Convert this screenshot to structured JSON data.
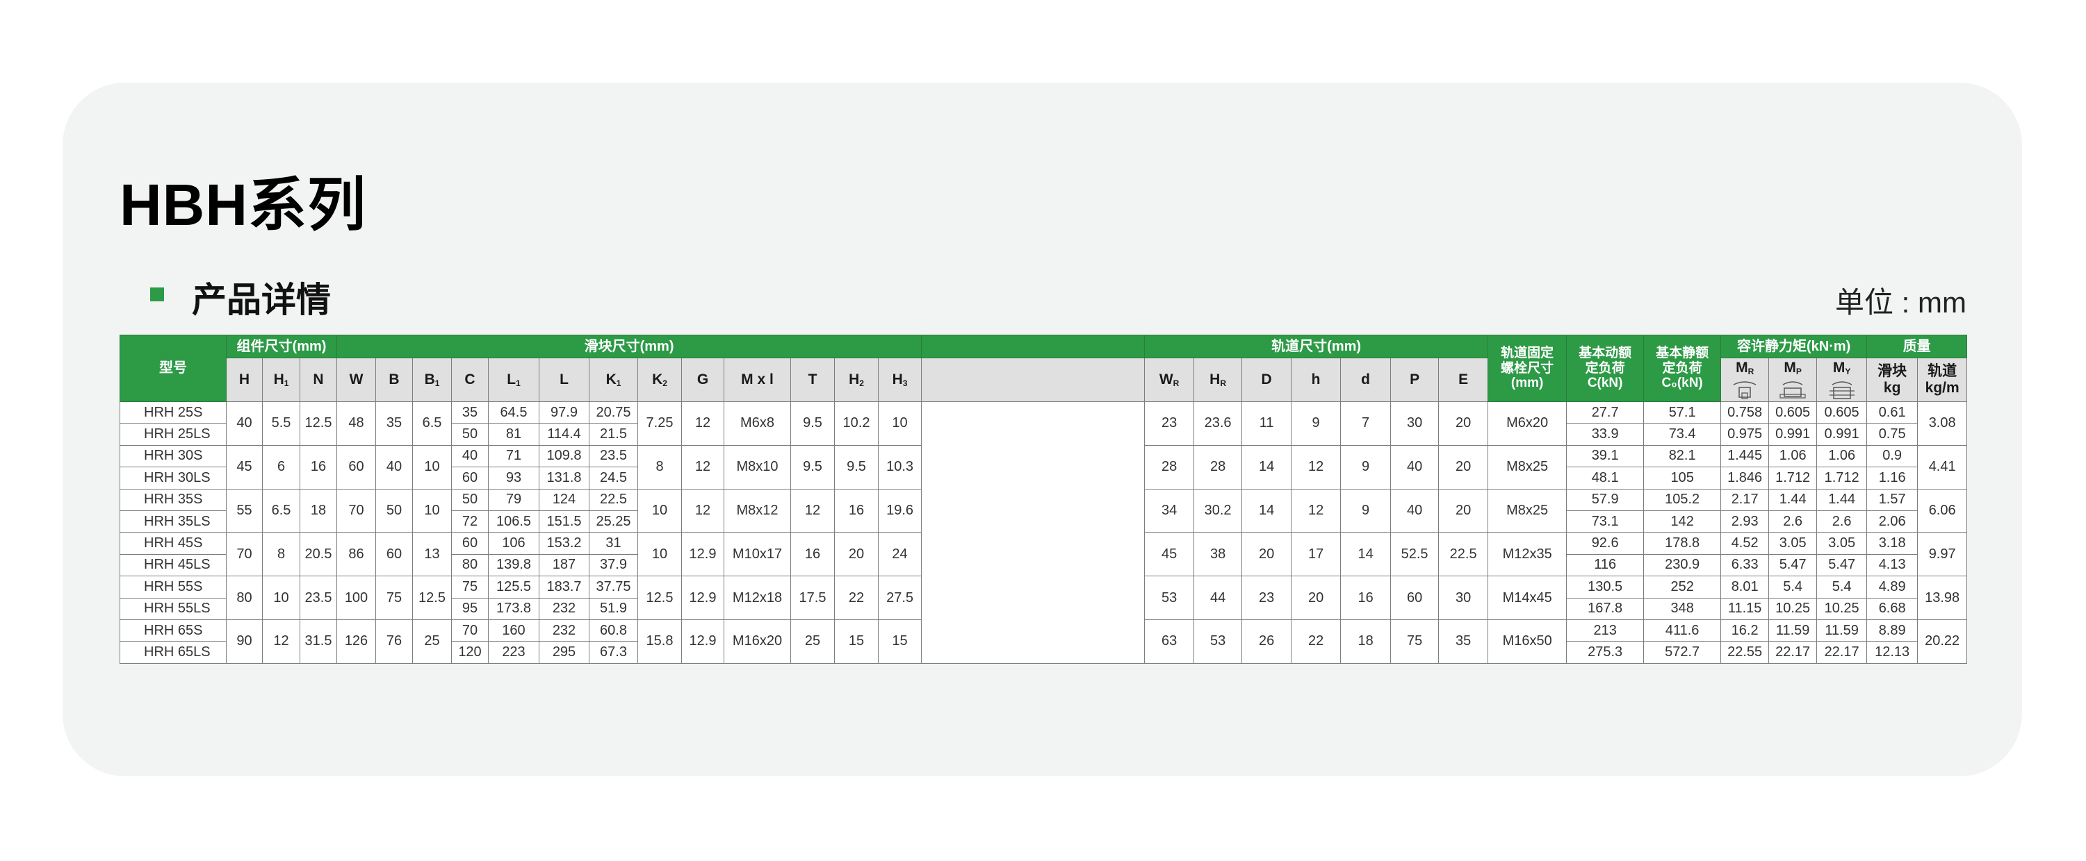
{
  "title": "HBH系列",
  "subtitle": "产品详情",
  "unit": "单位 : mm",
  "colors": {
    "accent": "#2d9a46",
    "header_gray": "#e0e0e0",
    "card": "#f2f4f3"
  },
  "header": {
    "model": "型号",
    "group_assembly": "组件尺寸(mm)",
    "group_block": "滑块尺寸(mm)",
    "group_rail": "轨道尺寸(mm)",
    "bolt": [
      "轨道固定",
      "螺栓尺寸",
      "(mm)"
    ],
    "dynamic": [
      "基本动额",
      "定负荷",
      "C(kN)"
    ],
    "static": [
      "基本静额",
      "定负荷",
      "C₀(kN)"
    ],
    "moment": "容许静力矩(kN·m)",
    "mass": "质量",
    "cols_assembly": [
      {
        "m": "H",
        "s": ""
      },
      {
        "m": "H",
        "s": "1"
      },
      {
        "m": "N",
        "s": ""
      }
    ],
    "cols_block": [
      {
        "m": "W",
        "s": ""
      },
      {
        "m": "B",
        "s": ""
      },
      {
        "m": "B",
        "s": "1"
      },
      {
        "m": "C",
        "s": ""
      },
      {
        "m": "L",
        "s": "1"
      },
      {
        "m": "L",
        "s": ""
      },
      {
        "m": "K",
        "s": "1"
      },
      {
        "m": "K",
        "s": "2"
      },
      {
        "m": "G",
        "s": ""
      },
      {
        "m": "M x l",
        "s": ""
      },
      {
        "m": "T",
        "s": ""
      },
      {
        "m": "H",
        "s": "2"
      },
      {
        "m": "H",
        "s": "3"
      }
    ],
    "cols_rail": [
      {
        "m": "W",
        "s": "R"
      },
      {
        "m": "H",
        "s": "R"
      },
      {
        "m": "D",
        "s": ""
      },
      {
        "m": "h",
        "s": ""
      },
      {
        "m": "d",
        "s": ""
      },
      {
        "m": "P",
        "s": ""
      },
      {
        "m": "E",
        "s": ""
      }
    ],
    "cols_moment": [
      {
        "m": "M",
        "s": "R",
        "icon": "rail-block-roll-icon"
      },
      {
        "m": "M",
        "s": "P",
        "icon": "block-pitch-icon"
      },
      {
        "m": "M",
        "s": "Y",
        "icon": "block-yaw-icon"
      }
    ],
    "mass_block": [
      "滑块",
      "kg"
    ],
    "mass_rail": [
      "轨道",
      "kg/m"
    ]
  },
  "groups": [
    {
      "shared": {
        "H": "40",
        "H1": "5.5",
        "N": "12.5",
        "W": "48",
        "B": "35",
        "B1": "6.5",
        "K2": "7.25",
        "G": "12",
        "Ml": "M6x8",
        "T": "9.5",
        "H2": "10.2",
        "H3": "10",
        "WR": "23",
        "HR": "23.6",
        "D": "11",
        "h": "9",
        "d": "7",
        "P": "30",
        "E": "20",
        "bolt": "M6x20",
        "rail_kg": "3.08"
      },
      "rows": [
        {
          "model": "HRH 25S",
          "C": "35",
          "L1": "64.5",
          "L": "97.9",
          "K1": "20.75",
          "Cd": "27.7",
          "C0": "57.1",
          "MR": "0.758",
          "MP": "0.605",
          "MY": "0.605",
          "kg": "0.61"
        },
        {
          "model": "HRH 25LS",
          "C": "50",
          "L1": "81",
          "L": "114.4",
          "K1": "21.5",
          "Cd": "33.9",
          "C0": "73.4",
          "MR": "0.975",
          "MP": "0.991",
          "MY": "0.991",
          "kg": "0.75"
        }
      ]
    },
    {
      "shared": {
        "H": "45",
        "H1": "6",
        "N": "16",
        "W": "60",
        "B": "40",
        "B1": "10",
        "K2": "8",
        "G": "12",
        "Ml": "M8x10",
        "T": "9.5",
        "H2": "9.5",
        "H3": "10.3",
        "WR": "28",
        "HR": "28",
        "D": "14",
        "h": "12",
        "d": "9",
        "P": "40",
        "E": "20",
        "bolt": "M8x25",
        "rail_kg": "4.41"
      },
      "rows": [
        {
          "model": "HRH 30S",
          "C": "40",
          "L1": "71",
          "L": "109.8",
          "K1": "23.5",
          "Cd": "39.1",
          "C0": "82.1",
          "MR": "1.445",
          "MP": "1.06",
          "MY": "1.06",
          "kg": "0.9"
        },
        {
          "model": "HRH 30LS",
          "C": "60",
          "L1": "93",
          "L": "131.8",
          "K1": "24.5",
          "Cd": "48.1",
          "C0": "105",
          "MR": "1.846",
          "MP": "1.712",
          "MY": "1.712",
          "kg": "1.16"
        }
      ]
    },
    {
      "shared": {
        "H": "55",
        "H1": "6.5",
        "N": "18",
        "W": "70",
        "B": "50",
        "B1": "10",
        "K2": "10",
        "G": "12",
        "Ml": "M8x12",
        "T": "12",
        "H2": "16",
        "H3": "19.6",
        "WR": "34",
        "HR": "30.2",
        "D": "14",
        "h": "12",
        "d": "9",
        "P": "40",
        "E": "20",
        "bolt": "M8x25",
        "rail_kg": "6.06"
      },
      "rows": [
        {
          "model": "HRH 35S",
          "C": "50",
          "L1": "79",
          "L": "124",
          "K1": "22.5",
          "Cd": "57.9",
          "C0": "105.2",
          "MR": "2.17",
          "MP": "1.44",
          "MY": "1.44",
          "kg": "1.57"
        },
        {
          "model": "HRH 35LS",
          "C": "72",
          "L1": "106.5",
          "L": "151.5",
          "K1": "25.25",
          "Cd": "73.1",
          "C0": "142",
          "MR": "2.93",
          "MP": "2.6",
          "MY": "2.6",
          "kg": "2.06"
        }
      ]
    },
    {
      "shared": {
        "H": "70",
        "H1": "8",
        "N": "20.5",
        "W": "86",
        "B": "60",
        "B1": "13",
        "K2": "10",
        "G": "12.9",
        "Ml": "M10x17",
        "T": "16",
        "H2": "20",
        "H3": "24",
        "WR": "45",
        "HR": "38",
        "D": "20",
        "h": "17",
        "d": "14",
        "P": "52.5",
        "E": "22.5",
        "bolt": "M12x35",
        "rail_kg": "9.97"
      },
      "rows": [
        {
          "model": "HRH 45S",
          "C": "60",
          "L1": "106",
          "L": "153.2",
          "K1": "31",
          "Cd": "92.6",
          "C0": "178.8",
          "MR": "4.52",
          "MP": "3.05",
          "MY": "3.05",
          "kg": "3.18"
        },
        {
          "model": "HRH 45LS",
          "C": "80",
          "L1": "139.8",
          "L": "187",
          "K1": "37.9",
          "Cd": "116",
          "C0": "230.9",
          "MR": "6.33",
          "MP": "5.47",
          "MY": "5.47",
          "kg": "4.13"
        }
      ]
    },
    {
      "shared": {
        "H": "80",
        "H1": "10",
        "N": "23.5",
        "W": "100",
        "B": "75",
        "B1": "12.5",
        "K2": "12.5",
        "G": "12.9",
        "Ml": "M12x18",
        "T": "17.5",
        "H2": "22",
        "H3": "27.5",
        "WR": "53",
        "HR": "44",
        "D": "23",
        "h": "20",
        "d": "16",
        "P": "60",
        "E": "30",
        "bolt": "M14x45",
        "rail_kg": "13.98"
      },
      "rows": [
        {
          "model": "HRH 55S",
          "C": "75",
          "L1": "125.5",
          "L": "183.7",
          "K1": "37.75",
          "Cd": "130.5",
          "C0": "252",
          "MR": "8.01",
          "MP": "5.4",
          "MY": "5.4",
          "kg": "4.89"
        },
        {
          "model": "HRH 55LS",
          "C": "95",
          "L1": "173.8",
          "L": "232",
          "K1": "51.9",
          "Cd": "167.8",
          "C0": "348",
          "MR": "11.15",
          "MP": "10.25",
          "MY": "10.25",
          "kg": "6.68"
        }
      ]
    },
    {
      "shared": {
        "H": "90",
        "H1": "12",
        "N": "31.5",
        "W": "126",
        "B": "76",
        "B1": "25",
        "K2": "15.8",
        "G": "12.9",
        "Ml": "M16x20",
        "T": "25",
        "H2": "15",
        "H3": "15",
        "WR": "63",
        "HR": "53",
        "D": "26",
        "h": "22",
        "d": "18",
        "P": "75",
        "E": "35",
        "bolt": "M16x50",
        "rail_kg": "20.22"
      },
      "rows": [
        {
          "model": "HRH 65S",
          "C": "70",
          "L1": "160",
          "L": "232",
          "K1": "60.8",
          "Cd": "213",
          "C0": "411.6",
          "MR": "16.2",
          "MP": "11.59",
          "MY": "11.59",
          "kg": "8.89"
        },
        {
          "model": "HRH 65LS",
          "C": "120",
          "L1": "223",
          "L": "295",
          "K1": "67.3",
          "Cd": "275.3",
          "C0": "572.7",
          "MR": "22.55",
          "MP": "22.17",
          "MY": "22.17",
          "kg": "12.13"
        }
      ]
    }
  ]
}
